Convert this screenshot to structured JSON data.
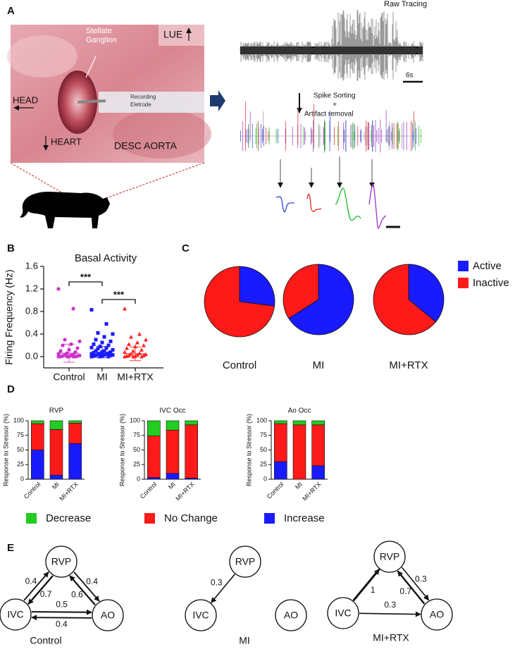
{
  "panel_labels": [
    "A",
    "B",
    "C",
    "D",
    "E"
  ],
  "photo": {
    "lue": "LUE",
    "stellate": [
      "Stellate",
      "Ganglion"
    ],
    "head": "HEAD",
    "electrode": [
      "Recording",
      "Eletrode"
    ],
    "heart": "HEART",
    "aorta": "DESC AORTA"
  },
  "tracing": {
    "raw_title": "Raw Tracing",
    "scale": "6s",
    "sorting": [
      "Spike Sorting",
      "+",
      "Artifact removal"
    ]
  },
  "chart_data": [
    {
      "type": "strip",
      "title": "Basal Activity",
      "ylabel": "Firing Frequency (Hz)",
      "categories": [
        "Control",
        "MI",
        "MI+RTX"
      ],
      "colors": [
        "#cc33cc",
        "#1a1aff",
        "#ff2020"
      ],
      "markers": [
        "circle",
        "square",
        "triangle"
      ],
      "points": [
        [
          1.2,
          0.85,
          0.3,
          0.27,
          0.22,
          0.2,
          0.15,
          0.12,
          0.1,
          0.08,
          0.06,
          0.05,
          0.04,
          0.03,
          0.02,
          0.02,
          0.01,
          0.01,
          0,
          0,
          0,
          0,
          0,
          0
        ],
        [
          0.83,
          0.58,
          0.42,
          0.4,
          0.35,
          0.3,
          0.27,
          0.25,
          0.22,
          0.2,
          0.18,
          0.16,
          0.15,
          0.14,
          0.12,
          0.1,
          0.1,
          0.08,
          0.08,
          0.07,
          0.06,
          0.05,
          0.05,
          0.04,
          0.04,
          0.03,
          0.03,
          0.02,
          0.02,
          0.01,
          0.01,
          0,
          0,
          0
        ],
        [
          0.85,
          0.4,
          0.35,
          0.3,
          0.25,
          0.22,
          0.2,
          0.18,
          0.15,
          0.12,
          0.1,
          0.08,
          0.06,
          0.05,
          0.04,
          0.03,
          0.02,
          0.02,
          0.01,
          0.01,
          0,
          0,
          0
        ]
      ],
      "means": [
        0.06,
        0.08,
        0.05
      ],
      "sd": [
        0.16,
        0.1,
        0.12
      ],
      "annotations": [
        "***",
        "***"
      ],
      "ylim": [
        -0.2,
        1.6
      ],
      "yticks": [
        {
          "value": 0,
          "label": "0.0"
        },
        0.4,
        0.8,
        1.2,
        1.6
      ]
    },
    {
      "type": "pie",
      "categories": [
        "Active",
        "Inactive"
      ],
      "colors": [
        "#1a1aff",
        "#ff1a1a"
      ],
      "pies": [
        {
          "name": "Control",
          "values": [
            27,
            73
          ]
        },
        {
          "name": "MI",
          "values": [
            66,
            34
          ]
        },
        {
          "name": "MI+RTX",
          "values": [
            36,
            64
          ]
        }
      ]
    },
    {
      "type": "stacked_bar",
      "title": "RVP",
      "ylabel": "Response to Stressor (%)",
      "categories": [
        "Control",
        "MI",
        "MI+RTX"
      ],
      "ylim": [
        0,
        100
      ],
      "yticks": [
        0,
        25,
        50,
        75,
        100
      ],
      "series": [
        {
          "name": "Increase",
          "color": "#1a1aff",
          "values": [
            50,
            7,
            61
          ]
        },
        {
          "name": "No Change",
          "color": "#ff1a1a",
          "values": [
            45,
            78,
            35
          ]
        },
        {
          "name": "Decrease",
          "color": "#22cc22",
          "values": [
            5,
            15,
            4
          ]
        }
      ]
    },
    {
      "type": "stacked_bar",
      "title": "IVC Occ",
      "ylabel": "Response to Stressor (%)",
      "categories": [
        "Control",
        "MI",
        "MI+RTX"
      ],
      "ylim": [
        0,
        100
      ],
      "yticks": [
        0,
        25,
        50,
        75,
        100
      ],
      "series": [
        {
          "color": "#1a1aff",
          "values": [
            3,
            10,
            2
          ]
        },
        {
          "color": "#ff1a1a",
          "values": [
            71,
            74,
            91
          ]
        },
        {
          "color": "#22cc22",
          "values": [
            26,
            16,
            7
          ]
        }
      ]
    },
    {
      "type": "stacked_bar",
      "title": "Ao Occ",
      "ylabel": "Response to Stressor (%)",
      "categories": [
        "Control",
        "MI",
        "MI+RTX"
      ],
      "ylim": [
        0,
        100
      ],
      "yticks": [
        0,
        25,
        50,
        75,
        100
      ],
      "series": [
        {
          "color": "#1a1aff",
          "values": [
            30,
            0,
            23
          ]
        },
        {
          "color": "#ff1a1a",
          "values": [
            65,
            93,
            70
          ]
        },
        {
          "color": "#22cc22",
          "values": [
            5,
            7,
            7
          ]
        }
      ]
    }
  ],
  "networks": [
    {
      "title": "Control",
      "nodes": [
        "RVP",
        "IVC",
        "AO"
      ],
      "edges": [
        {
          "from": 1,
          "to": 0,
          "weight": 0.4
        },
        {
          "from": 0,
          "to": 1,
          "weight": 0.7
        },
        {
          "from": 2,
          "to": 0,
          "weight": 0.6
        },
        {
          "from": 0,
          "to": 2,
          "weight": 0.4
        },
        {
          "from": 1,
          "to": 2,
          "weight": 0.5
        },
        {
          "from": 2,
          "to": 1,
          "weight": 0.4
        }
      ]
    },
    {
      "title": "MI",
      "nodes": [
        "RVP",
        "IVC",
        "AO"
      ],
      "edges": [
        {
          "from": 0,
          "to": 1,
          "weight": 0.3
        }
      ]
    },
    {
      "title": "MI+RTX",
      "nodes": [
        "RVP",
        "IVC",
        "AO"
      ],
      "edges": [
        {
          "from": 1,
          "to": 0,
          "weight": 1
        },
        {
          "from": 2,
          "to": 0,
          "weight": 0.7
        },
        {
          "from": 0,
          "to": 2,
          "weight": 0.3
        },
        {
          "from": 1,
          "to": 2,
          "weight": 0.3
        }
      ]
    }
  ]
}
